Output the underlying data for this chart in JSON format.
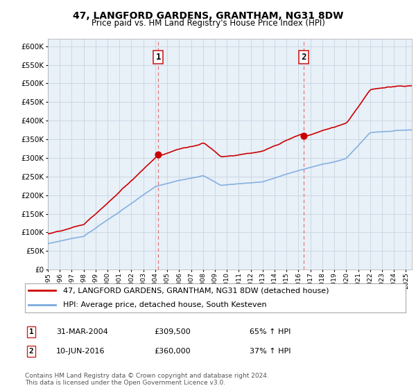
{
  "title": "47, LANGFORD GARDENS, GRANTHAM, NG31 8DW",
  "subtitle": "Price paid vs. HM Land Registry's House Price Index (HPI)",
  "legend_line1": "47, LANGFORD GARDENS, GRANTHAM, NG31 8DW (detached house)",
  "legend_line2": "HPI: Average price, detached house, South Kesteven",
  "annotation1_label": "1",
  "annotation1_date": "31-MAR-2004",
  "annotation1_price": "£309,500",
  "annotation1_hpi": "65% ↑ HPI",
  "annotation2_label": "2",
  "annotation2_date": "10-JUN-2016",
  "annotation2_price": "£360,000",
  "annotation2_hpi": "37% ↑ HPI",
  "footer": "Contains HM Land Registry data © Crown copyright and database right 2024.\nThis data is licensed under the Open Government Licence v3.0.",
  "sale1_year": 2004.25,
  "sale1_price": 309500,
  "sale2_year": 2016.45,
  "sale2_price": 360000,
  "hpi_color": "#7aaadd",
  "price_color": "#cc0000",
  "dot_color": "#cc0000",
  "vline_color": "#dd6666",
  "plot_bg": "#e8f0f8",
  "grid_color": "#c8d4e0",
  "ylim_min": 0,
  "ylim_max": 620000,
  "xlim_min": 1995,
  "xlim_max": 2025.5
}
